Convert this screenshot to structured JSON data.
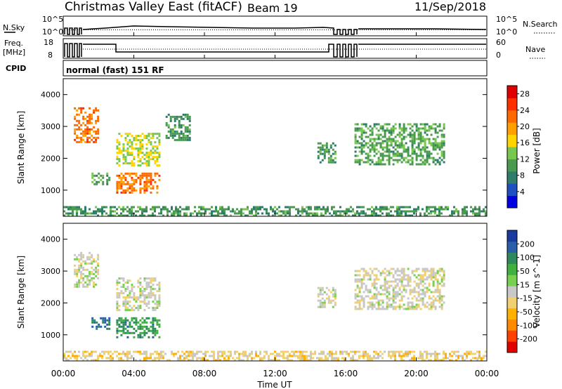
{
  "header": {
    "title": "Christmas Valley East (fitACF)",
    "beam": "Beam 19",
    "date": "11/Sep/2018",
    "cpid_label": "CPID",
    "cpid_value": "normal (fast) 151 RF"
  },
  "status_panels": {
    "nsky": {
      "label": "N.Sky",
      "ticks": [
        "10^5",
        "10^0"
      ],
      "right_label": "N.Search",
      "right_ticks": [
        "10^5",
        "10^0"
      ]
    },
    "freq": {
      "label_line1": "Freq.",
      "label_line2": "[MHz]",
      "ticks": [
        "18",
        "8"
      ],
      "right_label": "Nave",
      "right_ticks": [
        "60",
        "0"
      ]
    }
  },
  "time_axis": {
    "label": "Time UT",
    "ticks": [
      "00:00",
      "04:00",
      "08:00",
      "12:00",
      "16:00",
      "20:00",
      "00:00"
    ],
    "range_hours": [
      0,
      24
    ]
  },
  "chart_data": [
    {
      "type": "heatmap",
      "title": "Power",
      "xlabel": "Time UT",
      "ylabel": "Slant Range [km]",
      "yticks": [
        "1000",
        "2000",
        "3000",
        "4000"
      ],
      "ylim": [
        180,
        4500
      ],
      "colorbar": {
        "label": "Power [dB]",
        "ticks": [
          "4",
          "8",
          "12",
          "16",
          "20",
          "24",
          "28"
        ],
        "range": [
          0,
          30
        ],
        "colors": [
          "#0000e0",
          "#1f4fc0",
          "#2e7d6a",
          "#4a9a50",
          "#78c850",
          "#ffd400",
          "#ffa000",
          "#ff6a00",
          "#ff3000",
          "#e00000"
        ]
      },
      "regions": [
        {
          "t": [
            0.6,
            2.0
          ],
          "r": [
            2500,
            3600
          ],
          "value": 22
        },
        {
          "t": [
            3.0,
            5.4
          ],
          "r": [
            1800,
            2800
          ],
          "value": 15
        },
        {
          "t": [
            3.0,
            5.4
          ],
          "r": [
            900,
            1550
          ],
          "value": 22
        },
        {
          "t": [
            1.6,
            2.6
          ],
          "r": [
            1200,
            1550
          ],
          "value": 11
        },
        {
          "t": [
            5.8,
            7.2
          ],
          "r": [
            2600,
            3400
          ],
          "value": 10
        },
        {
          "t": [
            14.4,
            15.4
          ],
          "r": [
            1900,
            2500
          ],
          "value": 10
        },
        {
          "t": [
            16.5,
            21.6
          ],
          "r": [
            1800,
            3100
          ],
          "value": 11
        },
        {
          "t": [
            0,
            24
          ],
          "r": [
            180,
            500
          ],
          "value": 10
        }
      ]
    },
    {
      "type": "heatmap",
      "title": "Velocity",
      "xlabel": "Time UT",
      "ylabel": "Slant Range [km]",
      "yticks": [
        "1000",
        "2000",
        "3000",
        "4000"
      ],
      "ylim": [
        180,
        4500
      ],
      "colorbar": {
        "label": "Velocity [m s^-1]",
        "ticks": [
          "200",
          "100",
          "50",
          "15",
          "-15",
          "-50",
          "-100",
          "-200"
        ],
        "range": [
          -250,
          250
        ],
        "colors": [
          "#e00000",
          "#ff4000",
          "#ff8a00",
          "#ffb000",
          "#f0d070",
          "#c8c8c8",
          "#78d050",
          "#40b040",
          "#2e8a5a",
          "#2a5fa8",
          "#1a3aa0"
        ]
      },
      "regions": [
        {
          "t": [
            0.6,
            2.0
          ],
          "r": [
            2500,
            3600
          ],
          "value": 0
        },
        {
          "t": [
            3.0,
            5.4
          ],
          "r": [
            1800,
            2800
          ],
          "value": 0
        },
        {
          "t": [
            3.0,
            5.4
          ],
          "r": [
            900,
            1550
          ],
          "value": 120
        },
        {
          "t": [
            1.6,
            2.6
          ],
          "r": [
            1200,
            1550
          ],
          "value": 160
        },
        {
          "t": [
            14.4,
            15.4
          ],
          "r": [
            1900,
            2500
          ],
          "value": 0
        },
        {
          "t": [
            16.5,
            21.6
          ],
          "r": [
            1800,
            3100
          ],
          "value": -10
        },
        {
          "t": [
            0,
            24
          ],
          "r": [
            180,
            500
          ],
          "value": -40
        }
      ]
    }
  ]
}
